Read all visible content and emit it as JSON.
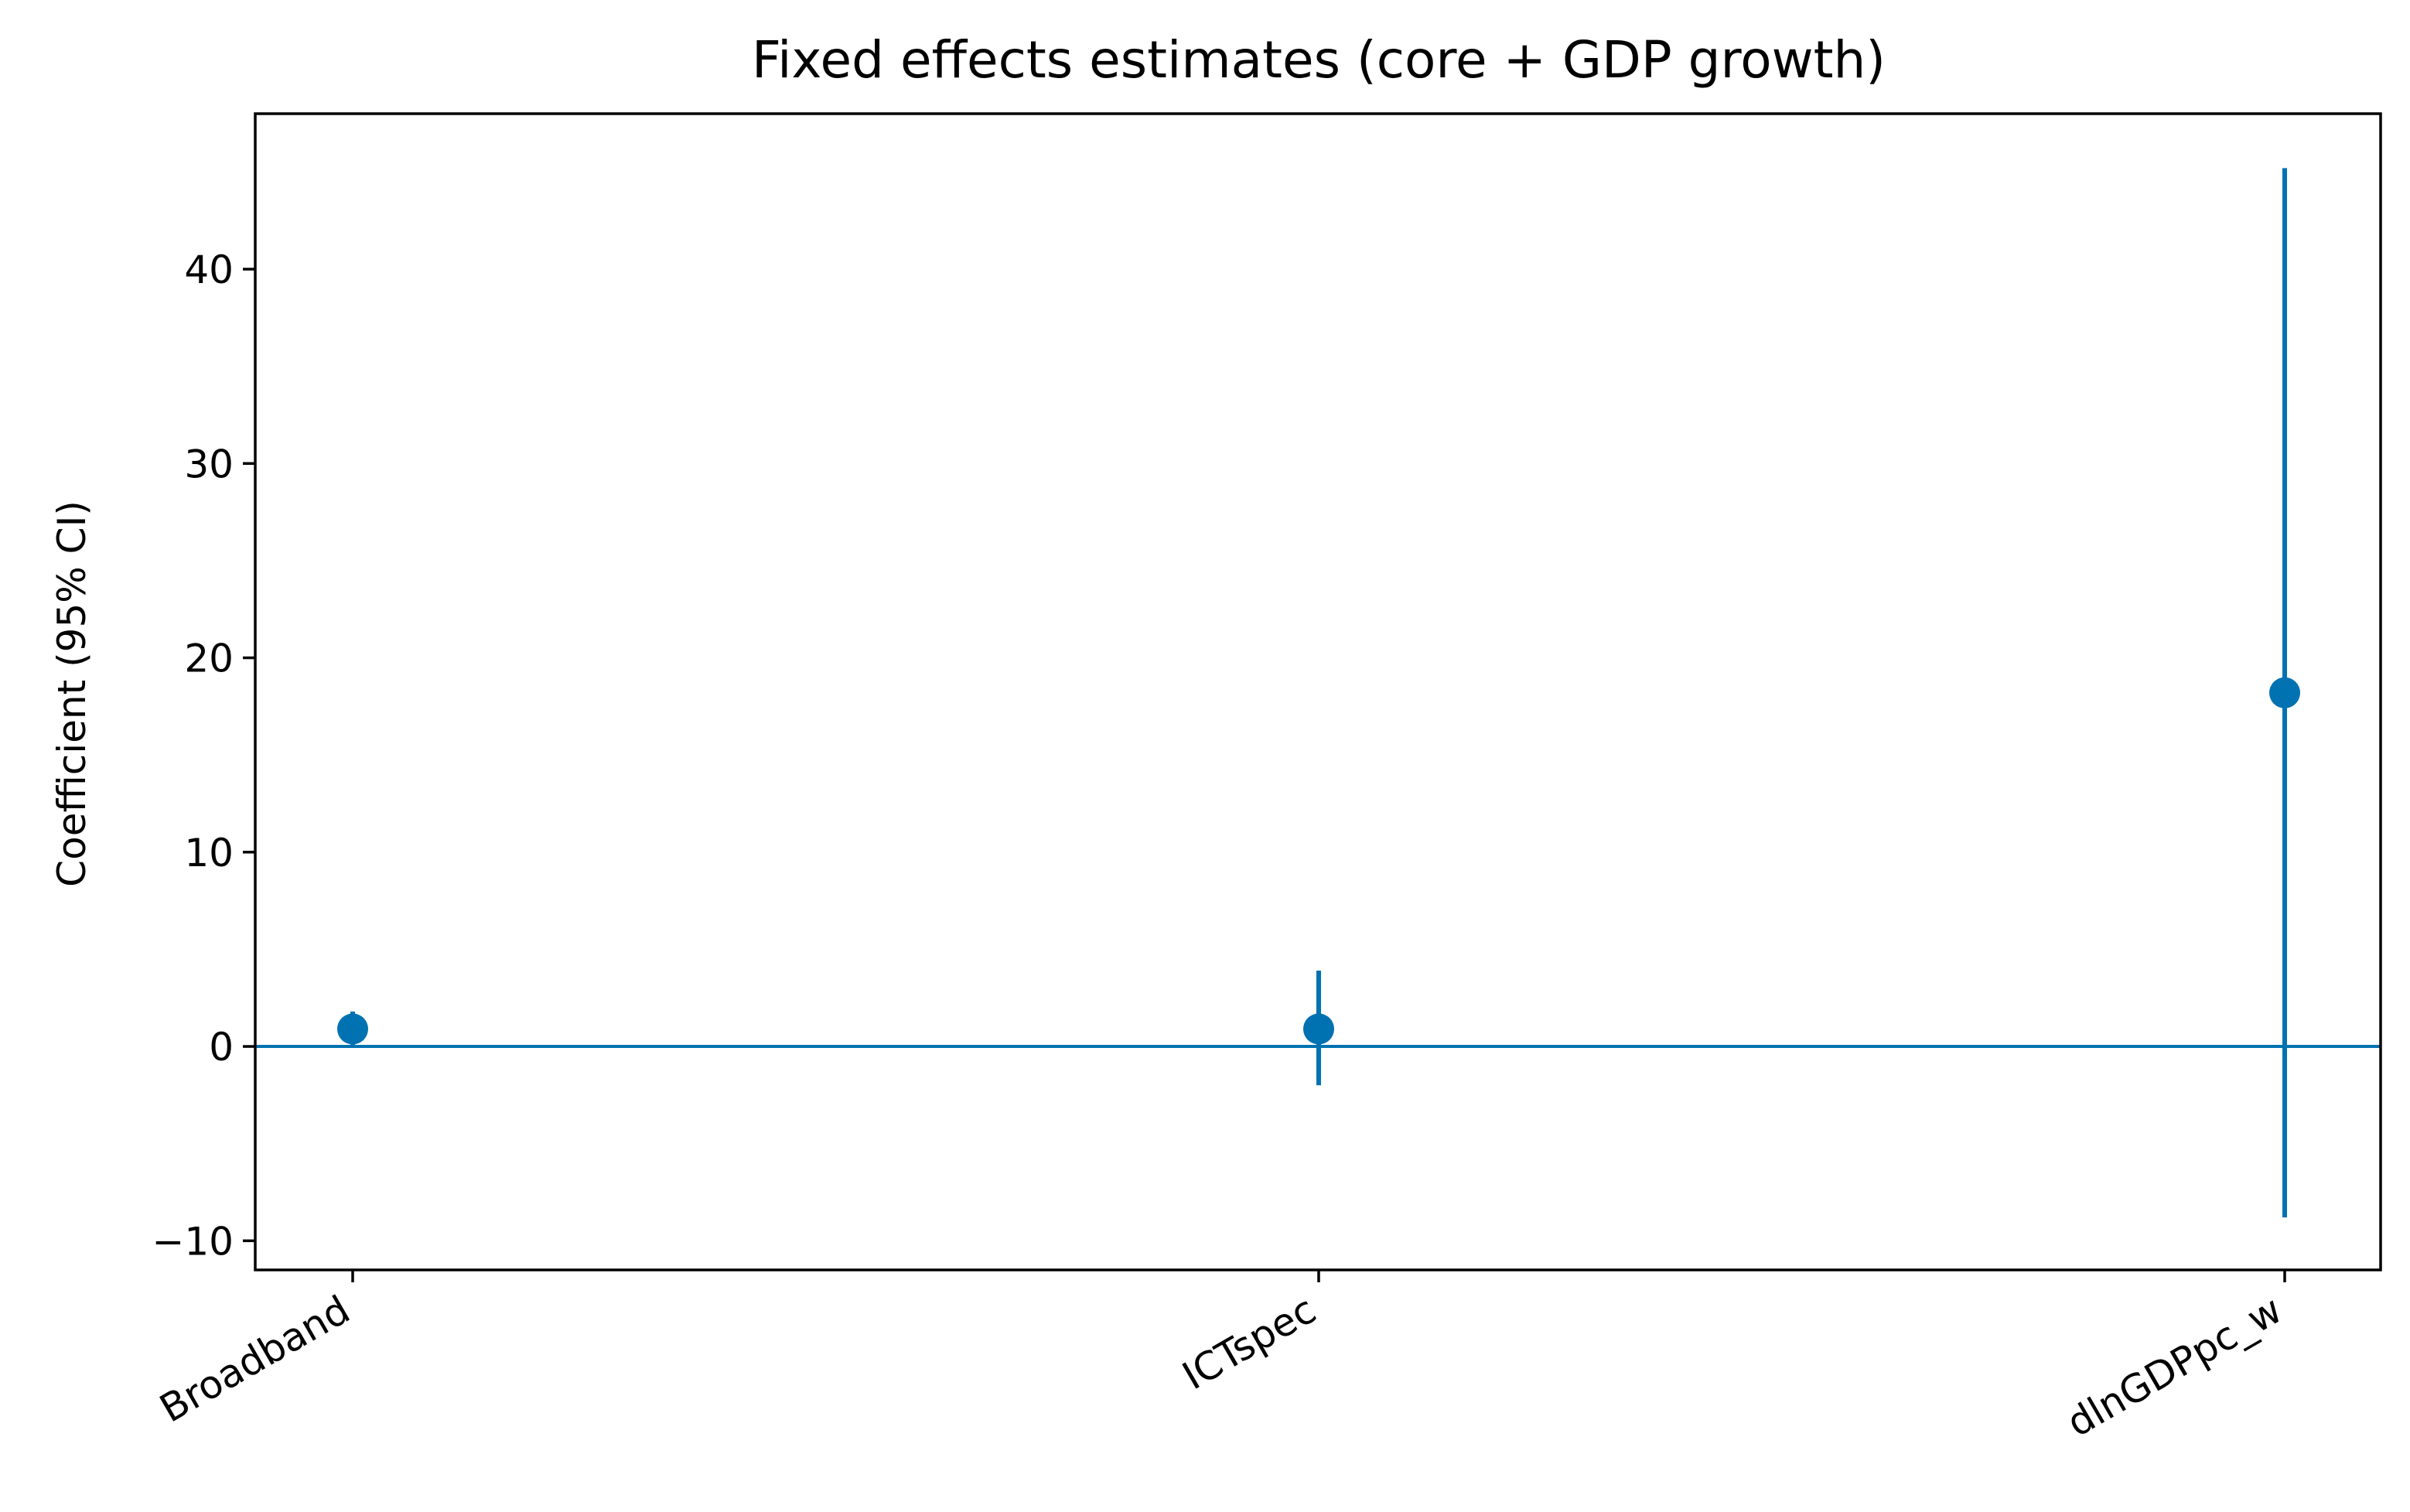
{
  "chart_data": {
    "type": "scatter",
    "title": "Fixed effects estimates (core + GDP growth)",
    "xlabel": "",
    "ylabel": "Coefficient (95% CI)",
    "categories": [
      "Broadband",
      "ICTspec",
      "dlnGDPpc_w"
    ],
    "series": [
      {
        "values": [
          0.9,
          0.9,
          18.2
        ],
        "ci_lower": [
          0.0,
          -2.0,
          -8.8
        ],
        "ci_upper": [
          1.8,
          3.9,
          45.2
        ]
      }
    ],
    "reference_line": 0,
    "ylim": [
      -11.5,
      48
    ],
    "yticks": [
      -10,
      0,
      10,
      20,
      30,
      40
    ],
    "ytick_labels": [
      "−10",
      "0",
      "10",
      "20",
      "30",
      "40"
    ],
    "grid": false,
    "legend": "none",
    "colors": {
      "marker": "#0072B2",
      "reference_line": "#0072B2",
      "axes": "#000000"
    }
  }
}
